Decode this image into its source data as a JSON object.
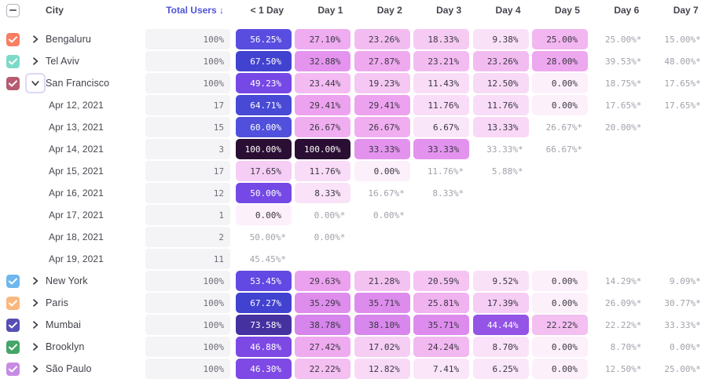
{
  "header": {
    "city_label": "City",
    "total_label": "Total Users ↓",
    "day_columns": [
      "< 1 Day",
      "Day 1",
      "Day 2",
      "Day 3",
      "Day 4",
      "Day 5",
      "Day 6",
      "Day 7"
    ]
  },
  "colors": {
    "sort_active": "#4F53D7",
    "header_text": "#45434E",
    "label_text": "#413F49",
    "muted_value": "#A3A1AB",
    "filled_dark_text": "#3B3844",
    "filled_light_text": "#FFFFFF",
    "total_bar_bg": "#F4F3F6",
    "total_text": "#6F6D78",
    "white_text_min": 44,
    "heatmap_stops": [
      [
        0,
        "#FCF0FB"
      ],
      [
        7,
        "#FAE6F9"
      ],
      [
        14,
        "#F8D7F6"
      ],
      [
        20,
        "#F5C6F2"
      ],
      [
        25,
        "#F2B6F0"
      ],
      [
        30,
        "#EC9FEF"
      ],
      [
        34,
        "#E190EE"
      ],
      [
        39,
        "#D685EC"
      ],
      [
        43,
        "#A75EE6"
      ],
      [
        46,
        "#8049E5"
      ],
      [
        50,
        "#7449E6"
      ],
      [
        54,
        "#5F49E2"
      ],
      [
        58,
        "#5450DE"
      ],
      [
        63,
        "#4B4FDA"
      ],
      [
        68,
        "#4140CF"
      ],
      [
        74,
        "#45309C"
      ],
      [
        80,
        "#3A2370"
      ],
      [
        90,
        "#311545"
      ],
      [
        100,
        "#2A0E33"
      ]
    ]
  },
  "rows": [
    {
      "type": "city",
      "label": "Bengaluru",
      "color": "#F97E62",
      "checked": true,
      "expanded": false,
      "total": "100%",
      "cells": [
        {
          "v": "56.25%",
          "p": 56.25,
          "s": "filled"
        },
        {
          "v": "27.10%",
          "p": 27.1,
          "s": "filled"
        },
        {
          "v": "23.26%",
          "p": 23.26,
          "s": "filled"
        },
        {
          "v": "18.33%",
          "p": 18.33,
          "s": "filled"
        },
        {
          "v": "9.38%",
          "p": 9.38,
          "s": "filled"
        },
        {
          "v": "25.00%",
          "p": 25.0,
          "s": "filled"
        },
        {
          "v": "25.00%*",
          "s": "muted"
        },
        {
          "v": "15.00%*",
          "s": "muted"
        }
      ]
    },
    {
      "type": "city",
      "label": "Tel Aviv",
      "color": "#7CDAC8",
      "checked": true,
      "expanded": false,
      "total": "100%",
      "cells": [
        {
          "v": "67.50%",
          "p": 67.5,
          "s": "filled"
        },
        {
          "v": "32.88%",
          "p": 32.88,
          "s": "filled"
        },
        {
          "v": "27.87%",
          "p": 27.87,
          "s": "filled"
        },
        {
          "v": "23.21%",
          "p": 23.21,
          "s": "filled"
        },
        {
          "v": "23.26%",
          "p": 23.26,
          "s": "filled"
        },
        {
          "v": "28.00%",
          "p": 28.0,
          "s": "filled"
        },
        {
          "v": "39.53%*",
          "s": "muted"
        },
        {
          "v": "48.00%*",
          "s": "muted"
        }
      ]
    },
    {
      "type": "city",
      "label": "San Francisco",
      "color": "#B65B72",
      "checked": true,
      "expanded": true,
      "total": "100%",
      "cells": [
        {
          "v": "49.23%",
          "p": 49.23,
          "s": "filled"
        },
        {
          "v": "23.44%",
          "p": 23.44,
          "s": "filled"
        },
        {
          "v": "19.23%",
          "p": 19.23,
          "s": "filled"
        },
        {
          "v": "11.43%",
          "p": 11.43,
          "s": "filled"
        },
        {
          "v": "12.50%",
          "p": 12.5,
          "s": "filled"
        },
        {
          "v": "0.00%",
          "p": 0,
          "s": "filled"
        },
        {
          "v": "18.75%*",
          "s": "muted"
        },
        {
          "v": "17.65%*",
          "s": "muted"
        }
      ]
    },
    {
      "type": "date",
      "label": "Apr 12, 2021",
      "total": "17",
      "cells": [
        {
          "v": "64.71%",
          "p": 64.71,
          "s": "filled"
        },
        {
          "v": "29.41%",
          "p": 29.41,
          "s": "filled"
        },
        {
          "v": "29.41%",
          "p": 29.41,
          "s": "filled"
        },
        {
          "v": "11.76%",
          "p": 11.76,
          "s": "filled"
        },
        {
          "v": "11.76%",
          "p": 11.76,
          "s": "filled"
        },
        {
          "v": "0.00%",
          "p": 0,
          "s": "filled"
        },
        {
          "v": "17.65%*",
          "s": "muted"
        },
        {
          "v": "17.65%*",
          "s": "muted"
        }
      ]
    },
    {
      "type": "date",
      "label": "Apr 13, 2021",
      "total": "15",
      "cells": [
        {
          "v": "60.00%",
          "p": 60.0,
          "s": "filled"
        },
        {
          "v": "26.67%",
          "p": 26.67,
          "s": "filled"
        },
        {
          "v": "26.67%",
          "p": 26.67,
          "s": "filled"
        },
        {
          "v": "6.67%",
          "p": 6.67,
          "s": "filled"
        },
        {
          "v": "13.33%",
          "p": 13.33,
          "s": "filled"
        },
        {
          "v": "26.67%*",
          "s": "muted"
        },
        {
          "v": "20.00%*",
          "s": "muted"
        },
        null
      ]
    },
    {
      "type": "date",
      "label": "Apr 14, 2021",
      "total": "3",
      "cells": [
        {
          "v": "100.00%",
          "p": 100,
          "s": "filled"
        },
        {
          "v": "100.00%",
          "p": 100,
          "s": "filled"
        },
        {
          "v": "33.33%",
          "p": 33.33,
          "s": "filled"
        },
        {
          "v": "33.33%",
          "p": 33.33,
          "s": "filled"
        },
        {
          "v": "33.33%*",
          "s": "muted"
        },
        {
          "v": "66.67%*",
          "s": "muted"
        },
        null,
        null
      ]
    },
    {
      "type": "date",
      "label": "Apr 15, 2021",
      "total": "17",
      "cells": [
        {
          "v": "17.65%",
          "p": 17.65,
          "s": "filled"
        },
        {
          "v": "11.76%",
          "p": 11.76,
          "s": "filled"
        },
        {
          "v": "0.00%",
          "p": 0,
          "s": "filled"
        },
        {
          "v": "11.76%*",
          "s": "muted"
        },
        {
          "v": "5.88%*",
          "s": "muted"
        },
        null,
        null,
        null
      ]
    },
    {
      "type": "date",
      "label": "Apr 16, 2021",
      "total": "12",
      "cells": [
        {
          "v": "50.00%",
          "p": 50.0,
          "s": "filled"
        },
        {
          "v": "8.33%",
          "p": 8.33,
          "s": "filled"
        },
        {
          "v": "16.67%*",
          "s": "muted"
        },
        {
          "v": "8.33%*",
          "s": "muted"
        },
        null,
        null,
        null,
        null
      ]
    },
    {
      "type": "date",
      "label": "Apr 17, 2021",
      "total": "1",
      "cells": [
        {
          "v": "0.00%",
          "p": 0,
          "s": "filled"
        },
        {
          "v": "0.00%*",
          "s": "muted"
        },
        {
          "v": "0.00%*",
          "s": "muted"
        },
        null,
        null,
        null,
        null,
        null
      ]
    },
    {
      "type": "date",
      "label": "Apr 18, 2021",
      "total": "2",
      "cells": [
        {
          "v": "50.00%*",
          "s": "muted"
        },
        {
          "v": "0.00%*",
          "s": "muted"
        },
        null,
        null,
        null,
        null,
        null,
        null
      ]
    },
    {
      "type": "date",
      "label": "Apr 19, 2021",
      "total": "11",
      "cells": [
        {
          "v": "45.45%*",
          "s": "muted"
        },
        null,
        null,
        null,
        null,
        null,
        null,
        null
      ]
    },
    {
      "type": "city",
      "label": "New York",
      "color": "#6FB7EE",
      "checked": true,
      "expanded": false,
      "total": "100%",
      "cells": [
        {
          "v": "53.45%",
          "p": 53.45,
          "s": "filled"
        },
        {
          "v": "29.63%",
          "p": 29.63,
          "s": "filled"
        },
        {
          "v": "21.28%",
          "p": 21.28,
          "s": "filled"
        },
        {
          "v": "20.59%",
          "p": 20.59,
          "s": "filled"
        },
        {
          "v": "9.52%",
          "p": 9.52,
          "s": "filled"
        },
        {
          "v": "0.00%",
          "p": 0,
          "s": "filled"
        },
        {
          "v": "14.29%*",
          "s": "muted"
        },
        {
          "v": "9.09%*",
          "s": "muted"
        }
      ]
    },
    {
      "type": "city",
      "label": "Paris",
      "color": "#FBB77E",
      "checked": true,
      "expanded": false,
      "total": "100%",
      "cells": [
        {
          "v": "67.27%",
          "p": 67.27,
          "s": "filled"
        },
        {
          "v": "35.29%",
          "p": 35.29,
          "s": "filled"
        },
        {
          "v": "35.71%",
          "p": 35.71,
          "s": "filled"
        },
        {
          "v": "25.81%",
          "p": 25.81,
          "s": "filled"
        },
        {
          "v": "17.39%",
          "p": 17.39,
          "s": "filled"
        },
        {
          "v": "0.00%",
          "p": 0,
          "s": "filled"
        },
        {
          "v": "26.09%*",
          "s": "muted"
        },
        {
          "v": "30.77%*",
          "s": "muted"
        }
      ]
    },
    {
      "type": "city",
      "label": "Mumbai",
      "color": "#564FB4",
      "checked": true,
      "expanded": false,
      "total": "100%",
      "cells": [
        {
          "v": "73.58%",
          "p": 73.58,
          "s": "filled"
        },
        {
          "v": "38.78%",
          "p": 38.78,
          "s": "filled"
        },
        {
          "v": "38.10%",
          "p": 38.1,
          "s": "filled"
        },
        {
          "v": "35.71%",
          "p": 35.71,
          "s": "filled"
        },
        {
          "v": "44.44%",
          "p": 44.44,
          "s": "filled"
        },
        {
          "v": "22.22%",
          "p": 22.22,
          "s": "filled"
        },
        {
          "v": "22.22%*",
          "s": "muted"
        },
        {
          "v": "33.33%*",
          "s": "muted"
        }
      ]
    },
    {
      "type": "city",
      "label": "Brooklyn",
      "color": "#46A569",
      "checked": true,
      "expanded": false,
      "total": "100%",
      "cells": [
        {
          "v": "46.88%",
          "p": 46.88,
          "s": "filled"
        },
        {
          "v": "27.42%",
          "p": 27.42,
          "s": "filled"
        },
        {
          "v": "17.02%",
          "p": 17.02,
          "s": "filled"
        },
        {
          "v": "24.24%",
          "p": 24.24,
          "s": "filled"
        },
        {
          "v": "8.70%",
          "p": 8.7,
          "s": "filled"
        },
        {
          "v": "0.00%",
          "p": 0,
          "s": "filled"
        },
        {
          "v": "8.70%*",
          "s": "muted"
        },
        {
          "v": "0.00%*",
          "s": "muted"
        }
      ]
    },
    {
      "type": "city",
      "label": "São Paulo",
      "color": "#C78BE3",
      "checked": true,
      "expanded": false,
      "total": "100%",
      "cells": [
        {
          "v": "46.30%",
          "p": 46.3,
          "s": "filled"
        },
        {
          "v": "22.22%",
          "p": 22.22,
          "s": "filled"
        },
        {
          "v": "12.82%",
          "p": 12.82,
          "s": "filled"
        },
        {
          "v": "7.41%",
          "p": 7.41,
          "s": "filled"
        },
        {
          "v": "6.25%",
          "p": 6.25,
          "s": "filled"
        },
        {
          "v": "0.00%",
          "p": 0,
          "s": "filled"
        },
        {
          "v": "12.50%*",
          "s": "muted"
        },
        {
          "v": "25.00%*",
          "s": "muted"
        }
      ]
    }
  ]
}
